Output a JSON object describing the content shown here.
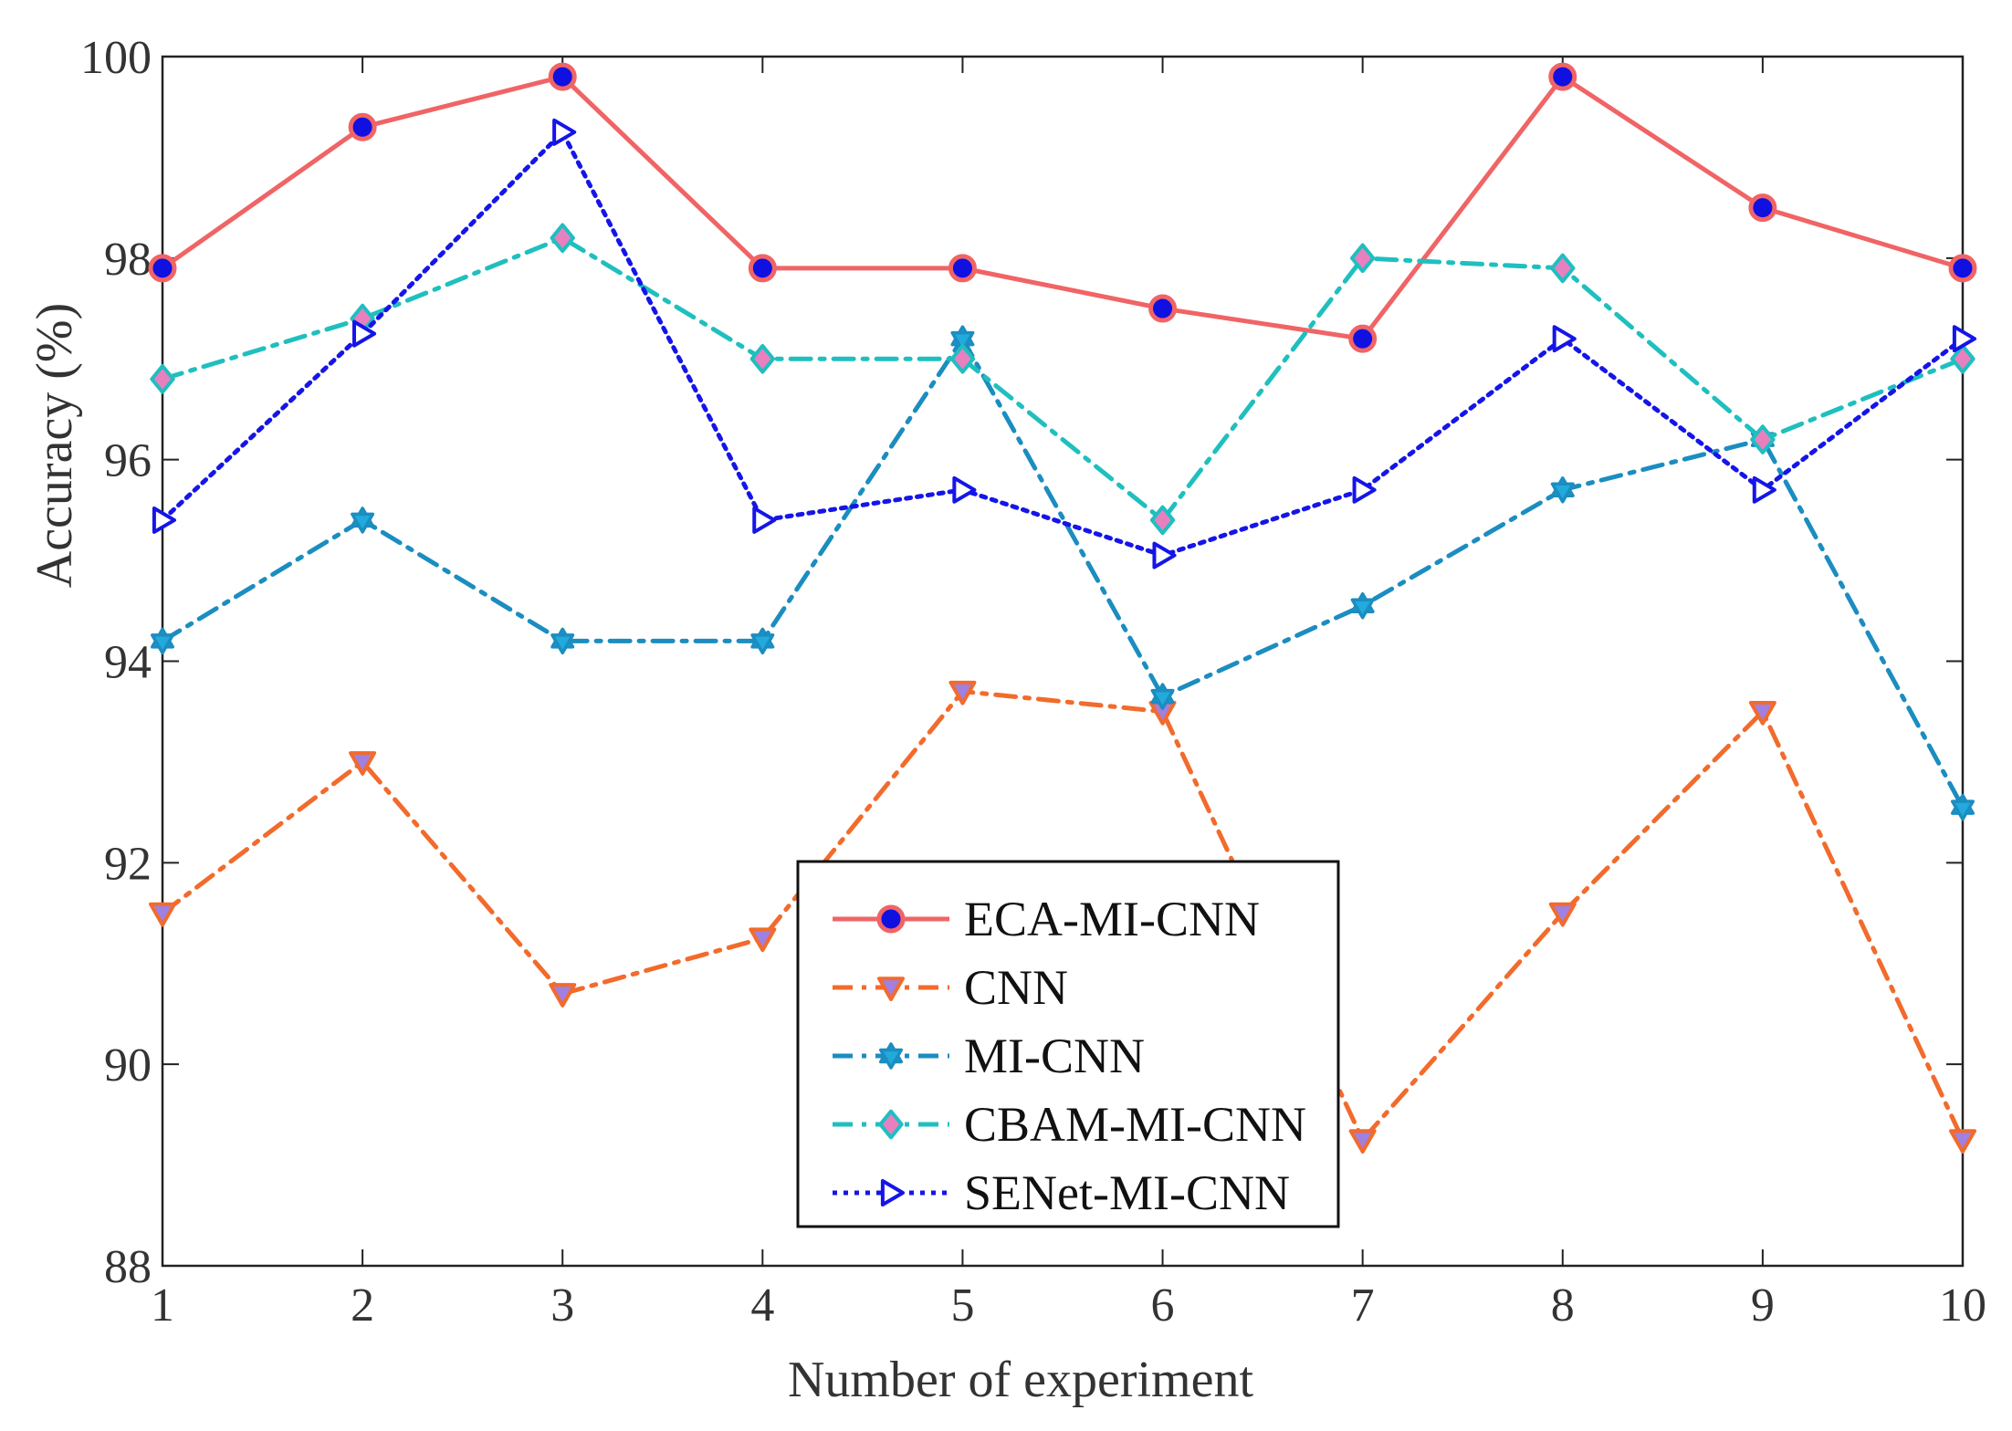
{
  "chart_data": {
    "type": "line",
    "title": "",
    "xlabel": "Number of experiment",
    "ylabel": "Accuracy (%)",
    "x": [
      1,
      2,
      3,
      4,
      5,
      6,
      7,
      8,
      9,
      10
    ],
    "xlim": [
      1,
      10
    ],
    "ylim": [
      88,
      100
    ],
    "xticks": [
      "1",
      "2",
      "3",
      "4",
      "5",
      "6",
      "7",
      "8",
      "9",
      "10"
    ],
    "yticks": [
      "88",
      "90",
      "92",
      "94",
      "96",
      "98",
      "100"
    ],
    "grid": false,
    "legend_position": "bottom-center",
    "series": [
      {
        "name": "ECA-MI-CNN",
        "color": "#F06466",
        "marker": "circle",
        "marker_fill": "#1010E0",
        "dash": "solid",
        "values": [
          97.9,
          99.3,
          99.8,
          97.9,
          97.9,
          97.5,
          97.2,
          99.8,
          98.5,
          97.9
        ]
      },
      {
        "name": "CNN",
        "color": "#F26B2C",
        "marker": "triangle-down",
        "marker_fill": "#A080E0",
        "dash": "dashdot",
        "values": [
          91.5,
          93.0,
          90.7,
          91.25,
          93.7,
          93.5,
          89.25,
          91.5,
          93.5,
          89.25
        ]
      },
      {
        "name": "MI-CNN",
        "color": "#1B8DC0",
        "marker": "hexagram",
        "marker_fill": "#22AADD",
        "dash": "dashdot",
        "values": [
          94.2,
          95.4,
          94.2,
          94.2,
          97.2,
          93.65,
          94.55,
          95.7,
          96.2,
          92.55
        ]
      },
      {
        "name": "CBAM-MI-CNN",
        "color": "#1FBFBF",
        "marker": "diamond",
        "marker_fill": "#E880C0",
        "dash": "dashdot",
        "values": [
          96.8,
          97.4,
          98.2,
          97.0,
          97.0,
          95.4,
          98.0,
          97.9,
          96.2,
          97.0
        ]
      },
      {
        "name": "SENet-MI-CNN",
        "color": "#1515E8",
        "marker": "triangle-right",
        "marker_fill": "#FFFFFF",
        "dash": "dotted",
        "values": [
          95.4,
          97.25,
          99.25,
          95.4,
          95.7,
          95.05,
          95.7,
          97.2,
          95.7,
          97.2
        ]
      }
    ]
  }
}
